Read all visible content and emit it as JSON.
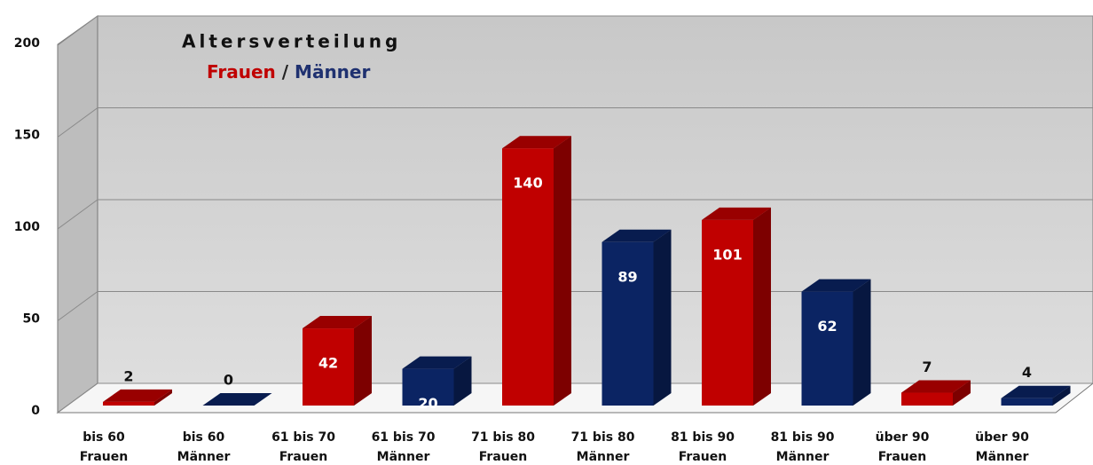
{
  "chart_data": {
    "type": "bar3d",
    "title": "Altersverteilung",
    "subtitle": [
      {
        "text": "Frauen",
        "color": "#c00000"
      },
      {
        "text": "/",
        "color": "#222222"
      },
      {
        "text": "Männer",
        "color": "#1f3170"
      }
    ],
    "categories": [
      [
        "bis 60",
        "Frauen"
      ],
      [
        "bis 60",
        "Männer"
      ],
      [
        "61 bis 70",
        "Frauen"
      ],
      [
        "61 bis 70",
        "Männer"
      ],
      [
        "71 bis 80",
        "Frauen"
      ],
      [
        "71 bis 80",
        "Männer"
      ],
      [
        "81 bis 90",
        "Frauen"
      ],
      [
        "81 bis 90",
        "Männer"
      ],
      [
        "über 90",
        "Frauen"
      ],
      [
        "über 90",
        "Männer"
      ]
    ],
    "values": [
      2,
      0,
      42,
      20,
      140,
      89,
      101,
      62,
      7,
      4
    ],
    "colors": [
      "#c00000",
      "#0b2463",
      "#c00000",
      "#0b2463",
      "#c00000",
      "#0b2463",
      "#c00000",
      "#0b2463",
      "#c00000",
      "#0b2463"
    ],
    "ylim": [
      0,
      200
    ],
    "yticks": [
      0,
      50,
      100,
      150,
      200
    ],
    "grid": true
  }
}
